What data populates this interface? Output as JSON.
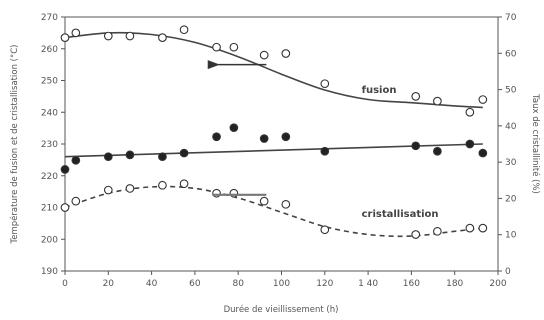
{
  "chart_data": {
    "type": "scatter",
    "title": "",
    "xlabel": "Durée de vieillissement (h)",
    "ylabel_left": "Température de fusion et de cristallisation (°C)",
    "ylabel_right": "Taux de cristallinité (%)",
    "xlim": [
      0,
      200
    ],
    "ylim_left": [
      190,
      270
    ],
    "ylim_right": [
      0,
      70
    ],
    "x_ticks": [
      "0",
      "20",
      "40",
      "60",
      "80",
      "100",
      "120",
      "1 40",
      "160",
      "180",
      "200"
    ],
    "y_left_ticks": [
      "190",
      "200",
      "210",
      "220",
      "230",
      "240",
      "250",
      "260",
      "270"
    ],
    "y_right_ticks": [
      "0",
      "10",
      "20",
      "30",
      "40",
      "50",
      "60",
      "70"
    ],
    "grid": false,
    "series": [
      {
        "name": "fusion",
        "axis": "left",
        "marker": "open-circle",
        "trend": "solid",
        "points": [
          [
            0,
            263.5
          ],
          [
            5,
            265
          ],
          [
            20,
            264
          ],
          [
            30,
            264
          ],
          [
            45,
            263.5
          ],
          [
            55,
            266
          ],
          [
            70,
            260.5
          ],
          [
            78,
            260.5
          ],
          [
            92,
            258
          ],
          [
            102,
            258.5
          ],
          [
            120,
            249
          ],
          [
            162,
            245
          ],
          [
            172,
            243.5
          ],
          [
            187,
            240
          ],
          [
            193,
            244
          ]
        ],
        "fit": [
          [
            0,
            263.5
          ],
          [
            20,
            265
          ],
          [
            40,
            264.5
          ],
          [
            60,
            262
          ],
          [
            80,
            257.5
          ],
          [
            100,
            252
          ],
          [
            120,
            247
          ],
          [
            140,
            244
          ],
          [
            160,
            243
          ],
          [
            180,
            242
          ],
          [
            193,
            241.5
          ]
        ]
      },
      {
        "name": "cristallisation",
        "axis": "left",
        "marker": "open-circle",
        "trend": "dashed",
        "points": [
          [
            0,
            210
          ],
          [
            5,
            212
          ],
          [
            20,
            215.5
          ],
          [
            30,
            216
          ],
          [
            45,
            217
          ],
          [
            55,
            217.5
          ],
          [
            70,
            214.5
          ],
          [
            78,
            214.5
          ],
          [
            92,
            212
          ],
          [
            102,
            211
          ],
          [
            120,
            203
          ],
          [
            162,
            201.5
          ],
          [
            172,
            202.5
          ],
          [
            187,
            203.5
          ],
          [
            193,
            203.5
          ]
        ],
        "fit": [
          [
            0,
            210
          ],
          [
            20,
            214.5
          ],
          [
            40,
            216.5
          ],
          [
            60,
            216
          ],
          [
            80,
            213
          ],
          [
            100,
            208.5
          ],
          [
            120,
            204
          ],
          [
            140,
            201.5
          ],
          [
            160,
            201
          ],
          [
            180,
            202.5
          ],
          [
            193,
            203.5
          ]
        ]
      },
      {
        "name": "",
        "axis": "right",
        "marker": "filled-circle",
        "trend": "solid",
        "points": [
          [
            0,
            28
          ],
          [
            5,
            30.5
          ],
          [
            20,
            31.5
          ],
          [
            30,
            32
          ],
          [
            45,
            31.5
          ],
          [
            55,
            32.5
          ],
          [
            70,
            37
          ],
          [
            78,
            39.5
          ],
          [
            92,
            36.5
          ],
          [
            102,
            37
          ],
          [
            120,
            33
          ],
          [
            162,
            34.5
          ],
          [
            172,
            33
          ],
          [
            187,
            35
          ],
          [
            193,
            32.5
          ]
        ],
        "fit": [
          [
            0,
            31.5
          ],
          [
            193,
            35
          ]
        ]
      }
    ],
    "annotations": [
      {
        "text": "fusion",
        "x": 137,
        "y_left": 246
      },
      {
        "text": "cristallisation",
        "x": 137,
        "y_left": 207
      },
      {
        "arrow": "left",
        "x_from": 93,
        "x_to": 68,
        "y_left": 255
      },
      {
        "arrow": "right",
        "x_from": 68,
        "x_to": 93,
        "y_left": 214
      }
    ]
  }
}
